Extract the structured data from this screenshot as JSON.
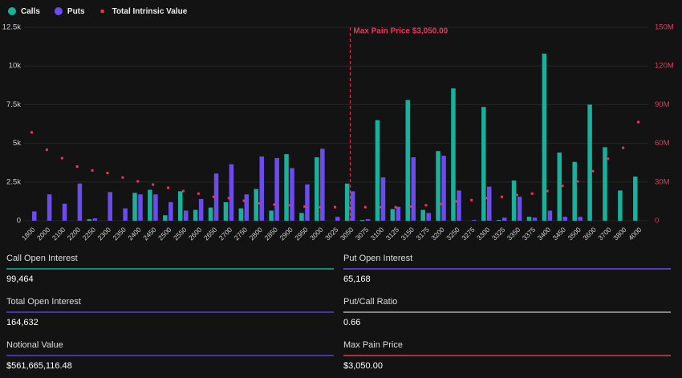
{
  "chart_data": {
    "type": "bar",
    "categories": [
      "1800",
      "2000",
      "2100",
      "2200",
      "2250",
      "2300",
      "2350",
      "2400",
      "2450",
      "2500",
      "2550",
      "2600",
      "2650",
      "2700",
      "2750",
      "2800",
      "2850",
      "2900",
      "2950",
      "3000",
      "3025",
      "3050",
      "3075",
      "3100",
      "3125",
      "3150",
      "3175",
      "3200",
      "3250",
      "3275",
      "3300",
      "3325",
      "3350",
      "3375",
      "3400",
      "3450",
      "3500",
      "3600",
      "3700",
      "3800",
      "4000"
    ],
    "series": [
      {
        "name": "Calls",
        "color": "#19b09c",
        "values": [
          0,
          0,
          0,
          0,
          100,
          0,
          0,
          1800,
          2000,
          350,
          1900,
          700,
          850,
          1200,
          800,
          2050,
          650,
          4300,
          500,
          4100,
          0,
          2400,
          50,
          6500,
          750,
          7800,
          700,
          4500,
          8550,
          0,
          7350,
          50,
          2600,
          250,
          10800,
          4400,
          3800,
          7500,
          4750,
          1950,
          2850
        ]
      },
      {
        "name": "Puts",
        "color": "#6c4cf0",
        "values": [
          600,
          1700,
          1100,
          2400,
          150,
          1850,
          800,
          1700,
          1700,
          1200,
          650,
          1400,
          3050,
          3650,
          1700,
          4150,
          4050,
          3400,
          2350,
          4650,
          250,
          1900,
          100,
          2800,
          900,
          4100,
          500,
          4200,
          1950,
          50,
          2200,
          200,
          1550,
          200,
          650,
          250,
          250,
          0,
          0,
          0,
          0
        ]
      },
      {
        "name": "Total Intrinsic Value",
        "color": "#e8365d",
        "axis": "y2",
        "type": "scatter",
        "values": [
          68500000,
          55000000,
          48500000,
          42000000,
          39000000,
          37000000,
          33500000,
          30500000,
          28000000,
          25500000,
          23000000,
          21000000,
          18500000,
          17500000,
          15500000,
          13500000,
          12500000,
          12000000,
          11000000,
          10500000,
          10500000,
          10000000,
          10500000,
          10500000,
          10500000,
          11000000,
          12000000,
          13000000,
          15000000,
          16000000,
          17500000,
          18500000,
          20000000,
          21000000,
          23000000,
          27000000,
          30500000,
          38500000,
          48000000,
          56500000,
          76500000
        ]
      }
    ],
    "ylim": [
      0,
      12500
    ],
    "yticks": [
      0,
      {
        "value": 2500,
        "label": "2.5k"
      },
      {
        "value": 5000,
        "label": "5k"
      },
      {
        "value": 7500,
        "label": "7.5k"
      },
      {
        "value": 10000,
        "label": "10k"
      },
      {
        "value": 12500,
        "label": "12.5k"
      }
    ],
    "y2lim": [
      0,
      150000000
    ],
    "y2ticks": [
      0,
      {
        "value": 30000000,
        "label": "30M"
      },
      {
        "value": 60000000,
        "label": "60M"
      },
      {
        "value": 90000000,
        "label": "90M"
      },
      {
        "value": 120000000,
        "label": "120M"
      },
      {
        "value": 150000000,
        "label": "150M"
      }
    ],
    "grid": true,
    "legend": "top-left",
    "annotation": {
      "text": "Max Pain Price $3,050.00",
      "x": "3050",
      "color": "#e8365d"
    }
  },
  "stats": [
    {
      "label": "Call Open Interest",
      "value": "99,464",
      "color": "#19b09c"
    },
    {
      "label": "Put Open Interest",
      "value": "65,168",
      "color": "#6c4cf0"
    },
    {
      "label": "Total Open Interest",
      "value": "164,632",
      "color": "#5b3fd9"
    },
    {
      "label": "Put/Call Ratio",
      "value": "0.66",
      "color": "#aaaaaa"
    },
    {
      "label": "Notional Value",
      "value": "$561,665,116.48",
      "color": "#5b3fd9"
    },
    {
      "label": "Max Pain Price",
      "value": "$3,050.00",
      "color": "#e8365d"
    }
  ]
}
